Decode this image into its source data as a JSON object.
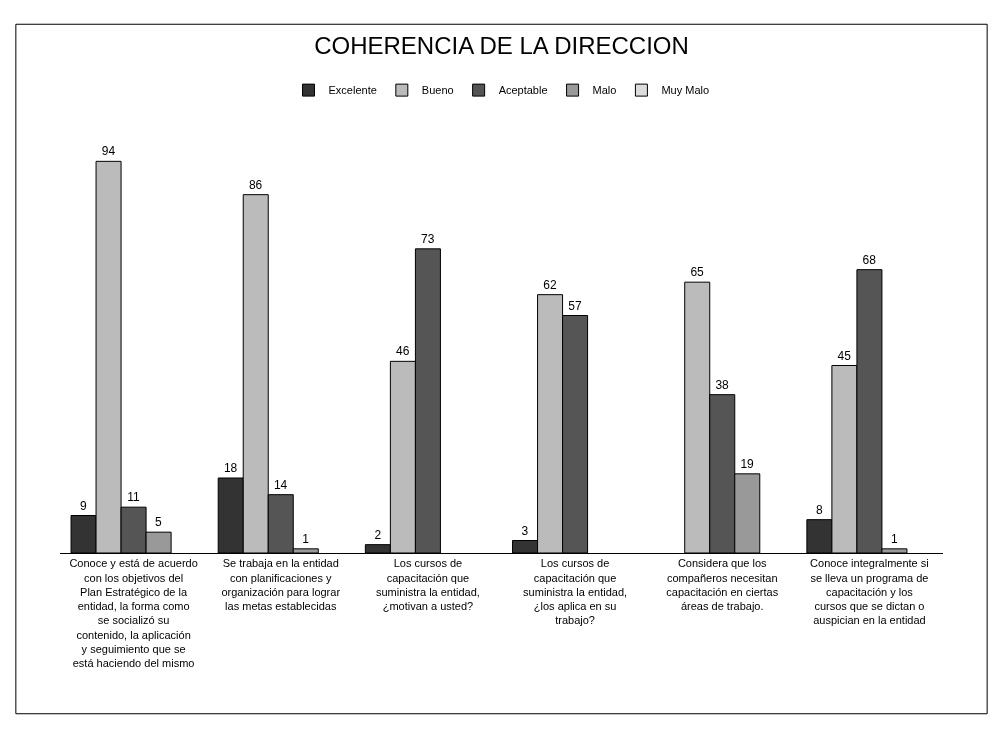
{
  "chart_data": {
    "type": "bar",
    "title": "COHERENCIA DE LA DIRECCION",
    "categories": [
      "Conoce y está de acuerdo con los objetivos del Plan Estratégico de la entidad, la forma como se socializó su contenido, la aplicación y seguimiento que se está haciendo del mismo",
      "Se trabaja en la entidad con planificaciones y organización para lograr las metas establecidas",
      "Los cursos de capacitación que suministra la entidad, ¿motivan a usted?",
      "Los cursos de capacitación que suministra la entidad, ¿los aplica en su trabajo?",
      "Considera que los compañeros necesitan capacitación en ciertas áreas de trabajo.",
      "Conoce integralmente si se lleva un programa de capacitación y los cursos que se dictan o auspician en la entidad"
    ],
    "series": [
      {
        "name": "Excelente",
        "color": "#333333",
        "values": [
          9,
          18,
          2,
          3,
          null,
          8
        ]
      },
      {
        "name": "Bueno",
        "color": "#bbbbbb",
        "values": [
          94,
          86,
          46,
          62,
          65,
          45
        ]
      },
      {
        "name": "Aceptable",
        "color": "#555555",
        "values": [
          11,
          14,
          73,
          57,
          38,
          68
        ]
      },
      {
        "name": "Malo",
        "color": "#999999",
        "values": [
          5,
          1,
          null,
          null,
          19,
          1
        ]
      },
      {
        "name": "Muy Malo",
        "color": "#dddddd",
        "values": [
          null,
          null,
          null,
          null,
          null,
          null
        ]
      }
    ],
    "data_labels": true,
    "legend": "top"
  }
}
